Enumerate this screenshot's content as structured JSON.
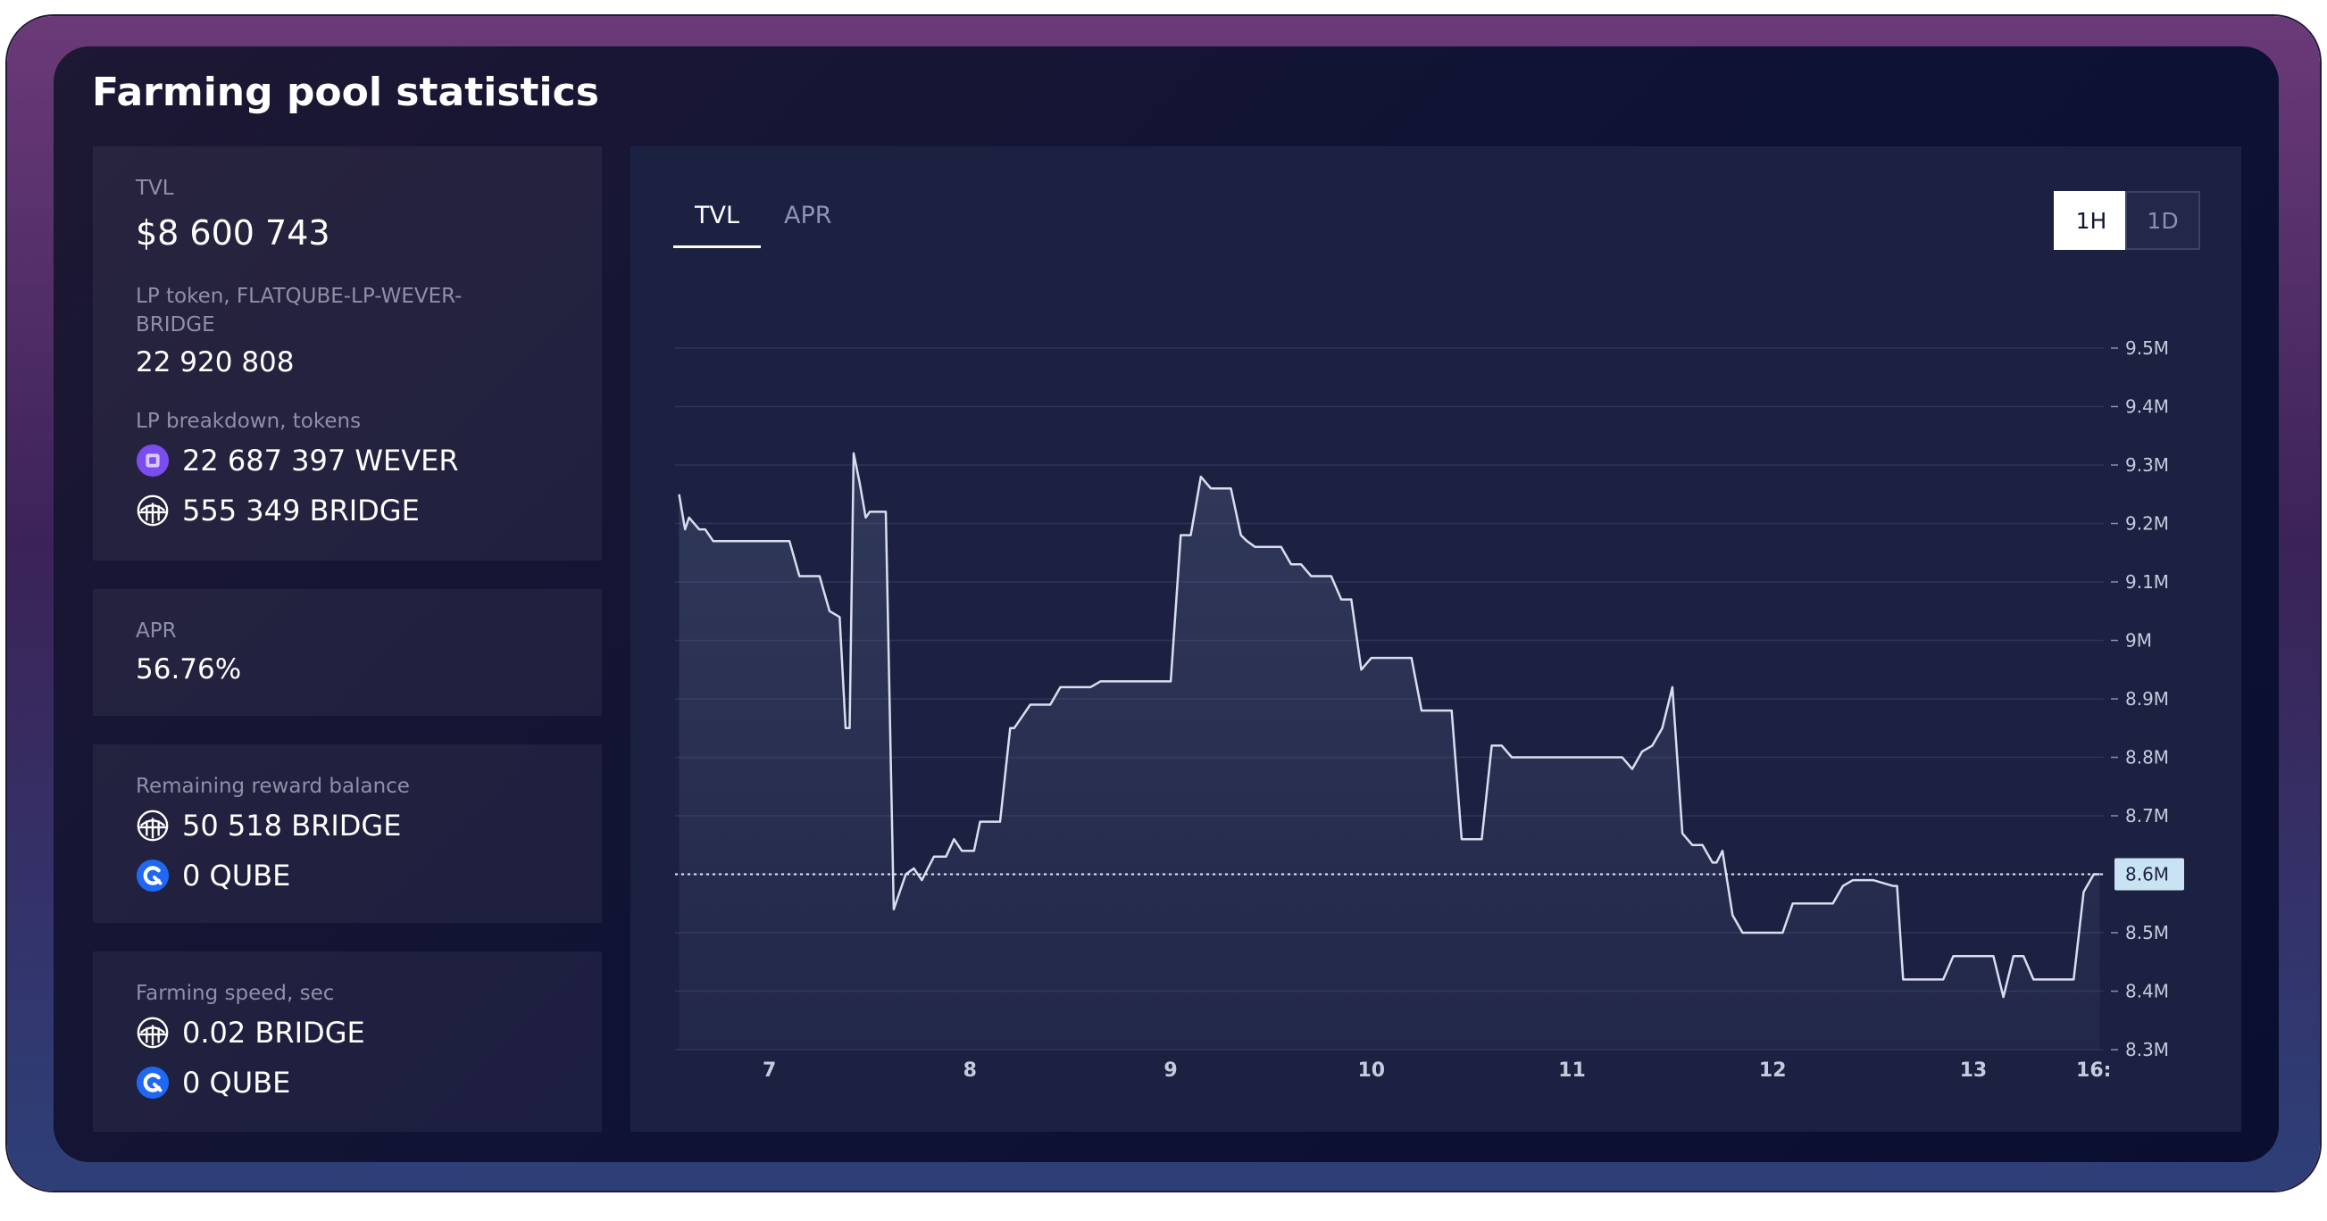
{
  "title": "Farming pool statistics",
  "tvl": {
    "label": "TVL",
    "value": "$8 600 743"
  },
  "lp_token": {
    "label": "LP token, FLATQUBE-LP-WEVER-BRIDGE",
    "value": "22 920 808"
  },
  "lp_breakdown": {
    "label": "LP breakdown, tokens",
    "items": [
      {
        "text": "22 687 397 WEVER",
        "icon": "wever-token-icon"
      },
      {
        "text": "555 349 BRIDGE",
        "icon": "bridge-token-icon"
      }
    ]
  },
  "apr": {
    "label": "APR",
    "value": "56.76%"
  },
  "reward": {
    "label": "Remaining reward balance",
    "items": [
      {
        "text": "50 518 BRIDGE",
        "icon": "bridge-token-icon"
      },
      {
        "text": "0 QUBE",
        "icon": "qube-token-icon"
      }
    ]
  },
  "speed": {
    "label": "Farming speed, sec",
    "items": [
      {
        "text": "0.02 BRIDGE",
        "icon": "bridge-token-icon"
      },
      {
        "text": "0 QUBE",
        "icon": "qube-token-icon"
      }
    ]
  },
  "tabs": {
    "tvl": "TVL",
    "apr": "APR",
    "active": "TVL"
  },
  "timeframes": {
    "h1": "1H",
    "d1": "1D",
    "active": "1H"
  },
  "colors": {
    "wever": "#7b4cf0",
    "qube": "#1f68f5",
    "line": "#d9deef"
  },
  "chart_data": {
    "type": "area",
    "y_tick_labels": [
      "9.5M",
      "9.4M",
      "9.3M",
      "9.2M",
      "9.1M",
      "9M",
      "8.9M",
      "8.8M",
      "8.7M",
      "8.6M",
      "8.5M",
      "8.4M",
      "8.3M"
    ],
    "x_tick_labels": [
      "7",
      "8",
      "9",
      "10",
      "11",
      "12",
      "13",
      "16:"
    ],
    "ylim": [
      8.3,
      9.5
    ],
    "y_unit": "M",
    "current_value_label": "8.6M",
    "current_value": 8.6,
    "grid": true,
    "series": [
      {
        "x": [
          6.55,
          6.58,
          6.6,
          6.65,
          6.68,
          6.72,
          6.75,
          6.8,
          6.9,
          7.0,
          7.1,
          7.15,
          7.2,
          7.25,
          7.3,
          7.35,
          7.38,
          7.4,
          7.42,
          7.45,
          7.48,
          7.5,
          7.52,
          7.58,
          7.62,
          7.68,
          7.72,
          7.76,
          7.82,
          7.83,
          7.88,
          7.92,
          7.96,
          8.0,
          8.02,
          8.05,
          8.08,
          8.12,
          8.15,
          8.2,
          8.22,
          8.3,
          8.35,
          8.4,
          8.45,
          8.5,
          8.55,
          8.6,
          8.65,
          8.7,
          8.75,
          8.8,
          8.85,
          8.9,
          9.0,
          9.05,
          9.1,
          9.15,
          9.2,
          9.25,
          9.3,
          9.35,
          9.38,
          9.42,
          9.45,
          9.5,
          9.55,
          9.6,
          9.65,
          9.7,
          9.75,
          9.8,
          9.85,
          9.9,
          9.95,
          10.0,
          10.05,
          10.1,
          10.15,
          10.2,
          10.25,
          10.3,
          10.35,
          10.4,
          10.45,
          10.5,
          10.55,
          10.6,
          10.62,
          10.65,
          10.7,
          10.72,
          10.78,
          10.85,
          10.9,
          11.0,
          11.1,
          11.2,
          11.25,
          11.3,
          11.35,
          11.4,
          11.45,
          11.5,
          11.55,
          11.6,
          11.65,
          11.7,
          11.72,
          11.75,
          11.8,
          11.85,
          11.9,
          11.95,
          12.0,
          12.05,
          12.1,
          12.2,
          12.3,
          12.35,
          12.4,
          12.45,
          12.5,
          12.6,
          12.62,
          12.65,
          12.7,
          12.8,
          12.85,
          12.9,
          13.0,
          13.05,
          13.1,
          13.15,
          13.2,
          13.25,
          13.3,
          13.35,
          13.4,
          13.45,
          13.5,
          13.55,
          13.6,
          13.63
        ],
        "y": [
          9.25,
          9.19,
          9.21,
          9.19,
          9.19,
          9.17,
          9.17,
          9.17,
          9.17,
          9.17,
          9.17,
          9.11,
          9.11,
          9.11,
          9.05,
          9.04,
          8.85,
          8.85,
          9.32,
          9.27,
          9.21,
          9.22,
          9.22,
          9.22,
          8.54,
          8.6,
          8.61,
          8.59,
          8.63,
          8.63,
          8.63,
          8.66,
          8.64,
          8.64,
          8.64,
          8.69,
          8.69,
          8.69,
          8.69,
          8.85,
          8.85,
          8.89,
          8.89,
          8.89,
          8.92,
          8.92,
          8.92,
          8.92,
          8.93,
          8.93,
          8.93,
          8.93,
          8.93,
          8.93,
          8.93,
          9.18,
          9.18,
          9.28,
          9.26,
          9.26,
          9.26,
          9.18,
          9.17,
          9.16,
          9.16,
          9.16,
          9.16,
          9.13,
          9.13,
          9.11,
          9.11,
          9.11,
          9.07,
          9.07,
          8.95,
          8.97,
          8.97,
          8.97,
          8.97,
          8.97,
          8.88,
          8.88,
          8.88,
          8.88,
          8.66,
          8.66,
          8.66,
          8.82,
          8.82,
          8.82,
          8.8,
          8.8,
          8.8,
          8.8,
          8.8,
          8.8,
          8.8,
          8.8,
          8.8,
          8.78,
          8.81,
          8.82,
          8.85,
          8.92,
          8.67,
          8.65,
          8.65,
          8.62,
          8.62,
          8.64,
          8.53,
          8.5,
          8.5,
          8.5,
          8.5,
          8.5,
          8.55,
          8.55,
          8.55,
          8.58,
          8.59,
          8.59,
          8.59,
          8.58,
          8.58,
          8.42,
          8.42,
          8.42,
          8.42,
          8.46,
          8.46,
          8.46,
          8.46,
          8.39,
          8.46,
          8.46,
          8.42,
          8.42,
          8.42,
          8.42,
          8.42,
          8.57,
          8.6,
          8.6
        ]
      }
    ]
  }
}
